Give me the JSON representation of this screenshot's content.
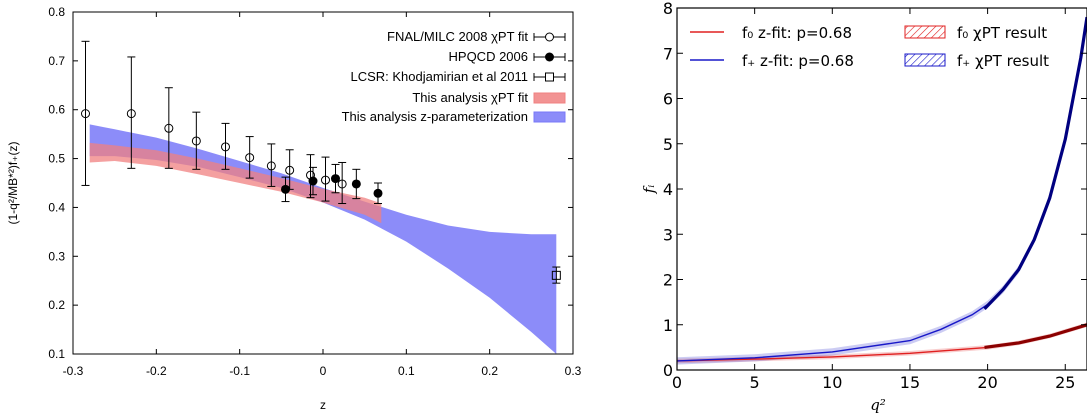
{
  "chart_data": [
    {
      "type": "scatter",
      "xlabel": "z",
      "ylabel": "(1-q²/MB*²)f₊(z)",
      "xlim": [
        -0.3,
        0.3
      ],
      "ylim": [
        0.1,
        0.8
      ],
      "x_ticks": [
        "-0.3",
        "-0.2",
        "-0.1",
        "0",
        "0.1",
        "0.2",
        "0.3"
      ],
      "y_ticks": [
        "0.1",
        "0.2",
        "0.3",
        "0.4",
        "0.5",
        "0.6",
        "0.7",
        "0.8"
      ],
      "legend_position": "top-right",
      "series": [
        {
          "name": "FNAL/MILC 2008 χPT fit",
          "marker": "open-circle",
          "points": [
            {
              "x": -0.285,
              "y": 0.592,
              "lo": 0.445,
              "hi": 0.74
            },
            {
              "x": -0.23,
              "y": 0.592,
              "lo": 0.48,
              "hi": 0.708
            },
            {
              "x": -0.185,
              "y": 0.562,
              "lo": 0.48,
              "hi": 0.645
            },
            {
              "x": -0.152,
              "y": 0.536,
              "lo": 0.478,
              "hi": 0.595
            },
            {
              "x": -0.117,
              "y": 0.524,
              "lo": 0.478,
              "hi": 0.572
            },
            {
              "x": -0.088,
              "y": 0.502,
              "lo": 0.46,
              "hi": 0.545
            },
            {
              "x": -0.062,
              "y": 0.485,
              "lo": 0.443,
              "hi": 0.53
            },
            {
              "x": -0.04,
              "y": 0.476,
              "lo": 0.437,
              "hi": 0.518
            },
            {
              "x": -0.015,
              "y": 0.466,
              "lo": 0.42,
              "hi": 0.508
            },
            {
              "x": 0.003,
              "y": 0.456,
              "lo": 0.413,
              "hi": 0.503
            },
            {
              "x": 0.023,
              "y": 0.448,
              "lo": 0.408,
              "hi": 0.492
            }
          ]
        },
        {
          "name": "HPQCD 2006",
          "marker": "filled-circle",
          "points": [
            {
              "x": -0.045,
              "y": 0.437,
              "lo": 0.412,
              "hi": 0.462
            },
            {
              "x": -0.012,
              "y": 0.454,
              "lo": 0.426,
              "hi": 0.482
            },
            {
              "x": 0.015,
              "y": 0.459,
              "lo": 0.43,
              "hi": 0.488
            },
            {
              "x": 0.04,
              "y": 0.448,
              "lo": 0.418,
              "hi": 0.478
            },
            {
              "x": 0.066,
              "y": 0.429,
              "lo": 0.408,
              "hi": 0.45
            }
          ]
        },
        {
          "name": "LCSR: Khodjamirian et al 2011",
          "marker": "open-square",
          "points": [
            {
              "x": 0.28,
              "y": 0.261,
              "lo": 0.245,
              "hi": 0.278
            }
          ]
        },
        {
          "name": "This analysis χPT fit",
          "type": "band",
          "color": "#f08080",
          "x": [
            -0.28,
            -0.25,
            -0.2,
            -0.15,
            -0.1,
            -0.05,
            0.0,
            0.05,
            0.07
          ],
          "lower": [
            0.492,
            0.495,
            0.485,
            0.468,
            0.45,
            0.432,
            0.41,
            0.385,
            0.368
          ],
          "upper": [
            0.532,
            0.527,
            0.517,
            0.5,
            0.48,
            0.46,
            0.438,
            0.42,
            0.408
          ]
        },
        {
          "name": "This analysis z-parameterization",
          "type": "band",
          "color": "#7878f8",
          "x": [
            -0.28,
            -0.25,
            -0.2,
            -0.15,
            -0.1,
            -0.05,
            0.0,
            0.05,
            0.1,
            0.15,
            0.2,
            0.25,
            0.28
          ],
          "lower": [
            0.505,
            0.505,
            0.497,
            0.483,
            0.462,
            0.44,
            0.41,
            0.375,
            0.33,
            0.275,
            0.215,
            0.145,
            0.1
          ],
          "upper": [
            0.57,
            0.56,
            0.543,
            0.52,
            0.495,
            0.47,
            0.44,
            0.412,
            0.385,
            0.363,
            0.35,
            0.345,
            0.345
          ]
        }
      ]
    },
    {
      "type": "line",
      "xlabel": "q²",
      "ylabel": "fᵢ",
      "xlim": [
        0,
        26.4
      ],
      "ylim": [
        0,
        8
      ],
      "x_ticks": [
        "0",
        "5",
        "10",
        "15",
        "20",
        "25"
      ],
      "y_ticks": [
        "0",
        "1",
        "2",
        "3",
        "4",
        "5",
        "6",
        "7",
        "8"
      ],
      "legend_position": "top",
      "series": [
        {
          "name": "f₀ z-fit: p=0.68",
          "color": "#e02020",
          "x": [
            0,
            5,
            10,
            15,
            20,
            22,
            24,
            26.4
          ],
          "y": [
            0.2,
            0.24,
            0.29,
            0.37,
            0.5,
            0.6,
            0.75,
            1.0
          ],
          "band": 0.05
        },
        {
          "name": "f₊ z-fit: p=0.68",
          "color": "#1818c8",
          "x": [
            0,
            5,
            10,
            15,
            17,
            19,
            20,
            21,
            22,
            23,
            24,
            25,
            26,
            26.4
          ],
          "y": [
            0.2,
            0.27,
            0.4,
            0.65,
            0.9,
            1.22,
            1.45,
            1.78,
            2.22,
            2.88,
            3.8,
            5.1,
            6.9,
            7.8
          ],
          "band": 0.08
        },
        {
          "name": "f₀ χPT result",
          "color": "#8b0000",
          "hatched": true,
          "x": [
            19.8,
            22,
            24,
            26.4
          ],
          "y": [
            0.5,
            0.6,
            0.75,
            1.0
          ]
        },
        {
          "name": "f₊ χPT result",
          "color": "#000080",
          "hatched": true,
          "x": [
            19.8,
            21,
            22,
            23,
            24,
            25,
            26,
            26.4
          ],
          "y": [
            1.35,
            1.78,
            2.22,
            2.88,
            3.8,
            5.1,
            6.9,
            7.8
          ]
        }
      ]
    }
  ]
}
